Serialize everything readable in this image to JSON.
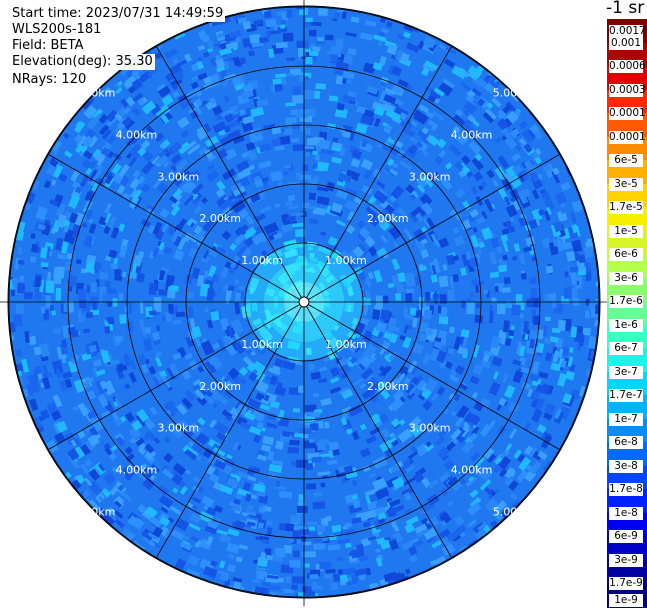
{
  "info": {
    "start_time": "Start time: 2023/07/31 14:49:59",
    "station": "WLS200s-181",
    "field": "Field: BETA",
    "elevation": "Elevation(deg): 35.30",
    "nrays": "NRays: 120"
  },
  "colorbar": {
    "unit": "-1 sr",
    "labels": [
      "0.0017",
      "0.001",
      "0.0006",
      "0.0003",
      "0.00017",
      "0.0001",
      "6e-5",
      "3e-5",
      "1.7e-5",
      "1e-5",
      "6e-6",
      "3e-6",
      "1.7e-6",
      "1e-6",
      "6e-7",
      "3e-7",
      "1.7e-7",
      "1e-7",
      "6e-8",
      "3e-8",
      "1.7e-8",
      "1e-8",
      "6e-9",
      "3e-9",
      "1.7e-9",
      "1e-9"
    ],
    "colors": [
      "#7f0000",
      "#b00000",
      "#e00000",
      "#ff2a00",
      "#ff5a00",
      "#ff8c00",
      "#ffb000",
      "#ffd200",
      "#f6f000",
      "#d8f52a",
      "#b4ff4c",
      "#8cff6e",
      "#64ff96",
      "#3cffc2",
      "#1ff2e6",
      "#00d6ff",
      "#00b2ff",
      "#008eff",
      "#006aff",
      "#0046ff",
      "#0022ff",
      "#0000f0",
      "#0000c8",
      "#0000a0",
      "#000080"
    ]
  },
  "chart_data": {
    "type": "heatmap",
    "projection": "polar (PPI scan)",
    "field": "BETA",
    "range_rings": [
      {
        "range_km": 1.0,
        "label": "1.00km"
      },
      {
        "range_km": 2.0,
        "label": "2.00km"
      },
      {
        "range_km": 3.0,
        "label": "3.00km"
      },
      {
        "range_km": 4.0,
        "label": "4.00km"
      },
      {
        "range_km": 5.0,
        "label": "5.00km"
      }
    ],
    "max_range_km": 5.0,
    "azimuth_spokes_deg": [
      0,
      30,
      60,
      90,
      120,
      150,
      180,
      210,
      240,
      270,
      300,
      330
    ],
    "ring_label_bearings_deg": [
      45,
      135,
      225,
      315
    ],
    "color_scale": "log",
    "value_range": [
      1e-09,
      0.0017
    ],
    "dominant_levels": [
      "1.7e-7",
      "1e-7",
      "6e-8",
      "3e-8",
      "1.7e-8",
      "1e-8"
    ],
    "near_center_level": "3e-7"
  }
}
